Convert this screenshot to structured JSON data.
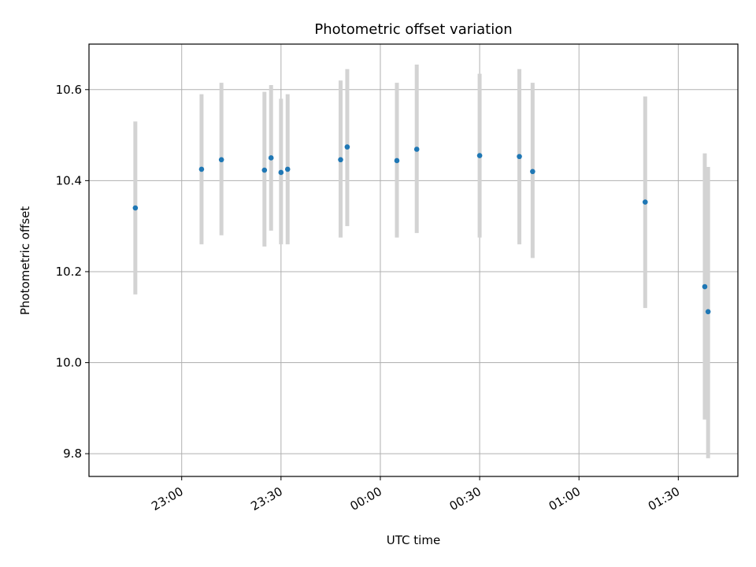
{
  "chart_data": {
    "type": "scatter",
    "title": "Photometric offset variation",
    "xlabel": "UTC time",
    "ylabel": "Photometric offset",
    "x_tick_labels": [
      "23:00",
      "23:30",
      "00:00",
      "00:30",
      "01:00",
      "01:30"
    ],
    "y_tick_labels": [
      "9.8",
      "10.0",
      "10.2",
      "10.4",
      "10.6"
    ],
    "y_ticks": [
      9.8,
      10.0,
      10.2,
      10.4,
      10.6
    ],
    "ylim": [
      9.75,
      10.7
    ],
    "xlim": [
      "22:32",
      "01:48"
    ],
    "grid": true,
    "marker_color": "#1f77b4",
    "errorbar_color": "#d3d3d3",
    "points": [
      {
        "x": "22:46",
        "y": 10.34,
        "y_low": 10.15,
        "y_high": 10.53
      },
      {
        "x": "23:06",
        "y": 10.425,
        "y_low": 10.26,
        "y_high": 10.59
      },
      {
        "x": "23:12",
        "y": 10.446,
        "y_low": 10.28,
        "y_high": 10.615
      },
      {
        "x": "23:25",
        "y": 10.423,
        "y_low": 10.255,
        "y_high": 10.595
      },
      {
        "x": "23:27",
        "y": 10.45,
        "y_low": 10.29,
        "y_high": 10.61
      },
      {
        "x": "23:30",
        "y": 10.418,
        "y_low": 10.26,
        "y_high": 10.58
      },
      {
        "x": "23:32",
        "y": 10.425,
        "y_low": 10.26,
        "y_high": 10.59
      },
      {
        "x": "23:48",
        "y": 10.446,
        "y_low": 10.275,
        "y_high": 10.62
      },
      {
        "x": "23:50",
        "y": 10.474,
        "y_low": 10.3,
        "y_high": 10.645
      },
      {
        "x": "00:05",
        "y": 10.444,
        "y_low": 10.275,
        "y_high": 10.615
      },
      {
        "x": "00:11",
        "y": 10.469,
        "y_low": 10.285,
        "y_high": 10.655
      },
      {
        "x": "00:30",
        "y": 10.455,
        "y_low": 10.275,
        "y_high": 10.635
      },
      {
        "x": "00:42",
        "y": 10.453,
        "y_low": 10.26,
        "y_high": 10.645
      },
      {
        "x": "00:46",
        "y": 10.42,
        "y_low": 10.23,
        "y_high": 10.615
      },
      {
        "x": "01:20",
        "y": 10.353,
        "y_low": 10.12,
        "y_high": 10.585
      },
      {
        "x": "01:38",
        "y": 10.167,
        "y_low": 9.875,
        "y_high": 10.46
      },
      {
        "x": "01:39",
        "y": 10.112,
        "y_low": 9.79,
        "y_high": 10.43
      }
    ]
  }
}
